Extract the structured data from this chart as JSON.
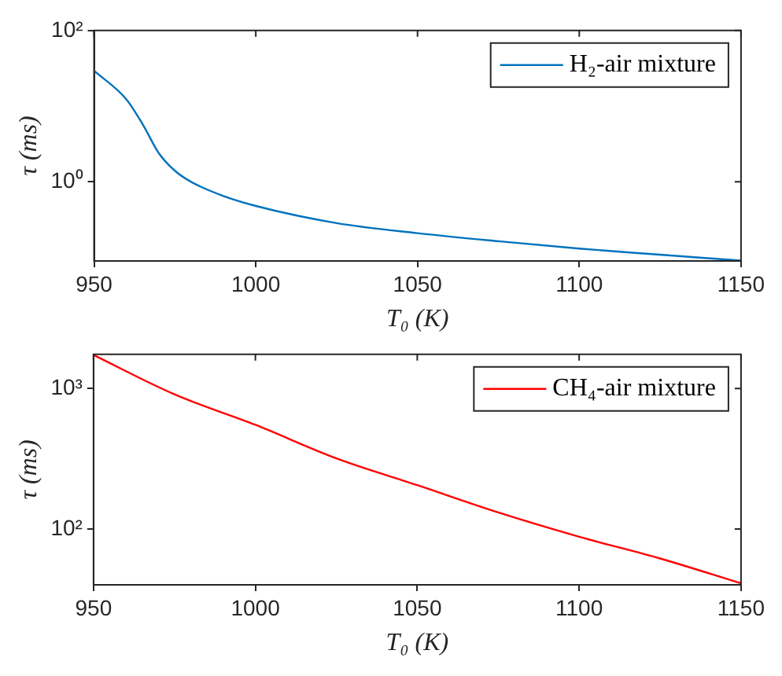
{
  "chart_data": [
    {
      "type": "line",
      "xlabel": "T₀ (K)",
      "ylabel": "τ (ms)",
      "log": "y",
      "legend": "top right",
      "x": [
        950,
        960,
        965,
        970,
        975,
        980,
        990,
        1000,
        1025,
        1050,
        1075,
        1100,
        1125,
        1150
      ],
      "series": [
        {
          "name": "H₂-air mixture",
          "color": "#0072bd",
          "values": [
            29.4,
            12.3,
            5.8,
            2.4,
            1.4,
            1.0,
            0.65,
            0.48,
            0.285,
            0.21,
            0.164,
            0.131,
            0.109,
            0.091
          ]
        }
      ],
      "xlim": [
        950,
        1150
      ],
      "xticks": [
        950,
        1000,
        1050,
        1100,
        1150
      ],
      "ylim": [
        0.09,
        100
      ],
      "yticks": [
        {
          "value": 1,
          "label": "10⁰"
        },
        {
          "value": 100,
          "label": "10²"
        }
      ]
    },
    {
      "type": "line",
      "xlabel": "T₀ (K)",
      "ylabel": "τ (ms)",
      "log": "y",
      "legend": "top right",
      "x": [
        950,
        975,
        1000,
        1025,
        1050,
        1075,
        1100,
        1125,
        1150
      ],
      "series": [
        {
          "name": "CH₄-air mixture",
          "color": "#ff0000",
          "values": [
            1730,
            908,
            551,
            318,
            205,
            131,
            88,
            61.6,
            41
          ]
        }
      ],
      "xlim": [
        950,
        1150
      ],
      "xticks": [
        950,
        1000,
        1050,
        1100,
        1150
      ],
      "ylim": [
        40,
        1750
      ],
      "yticks": [
        {
          "value": 100,
          "label": "10²"
        },
        {
          "value": 1000,
          "label": "10³"
        }
      ]
    }
  ]
}
